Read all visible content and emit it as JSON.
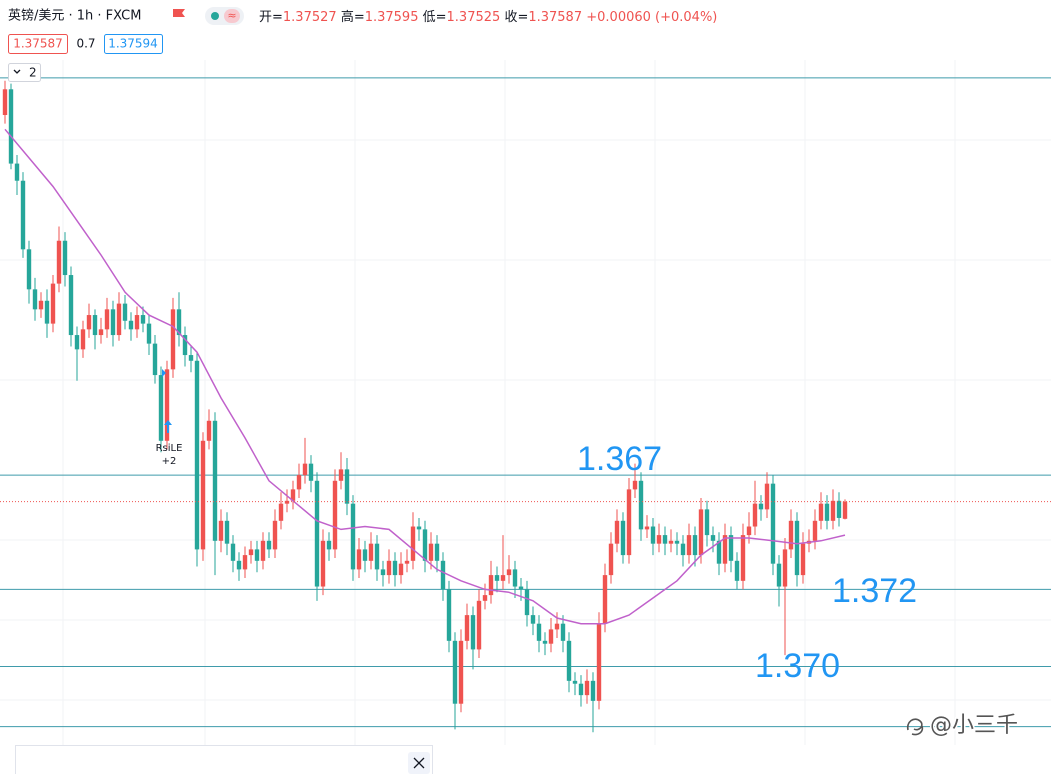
{
  "chart_data": {
    "type": "candlestick",
    "title": "英镑/美元 · 1h · FXCM",
    "ohlc_labels": [
      "开=",
      "高=",
      "低=",
      "收="
    ],
    "ohlc_values": [
      1.37527,
      1.37595,
      1.37525,
      1.37587
    ],
    "change": {
      "value": 0.0006,
      "label": "+0.00060"
    },
    "change_pct": {
      "value": 0.04,
      "label": "(+0.04%)"
    },
    "bid": 1.37587,
    "spread": 0.7,
    "ask": 1.37594,
    "indicator_count": 2,
    "up_color": "#ef5350",
    "down_color": "#26a69a",
    "ylim": [
      1.3676,
      1.3908
    ],
    "candles": [
      [
        1.3894,
        1.3906,
        1.3891,
        1.3903
      ],
      [
        1.3903,
        1.3905,
        1.3875,
        1.3877
      ],
      [
        1.3877,
        1.388,
        1.3866,
        1.3871
      ],
      [
        1.3871,
        1.3874,
        1.3844,
        1.3847
      ],
      [
        1.3847,
        1.385,
        1.3828,
        1.3833
      ],
      [
        1.3833,
        1.3837,
        1.3822,
        1.3826
      ],
      [
        1.3826,
        1.3832,
        1.3823,
        1.3829
      ],
      [
        1.3829,
        1.3833,
        1.3816,
        1.3821
      ],
      [
        1.3821,
        1.3838,
        1.3818,
        1.3835
      ],
      [
        1.3835,
        1.3855,
        1.3832,
        1.385
      ],
      [
        1.385,
        1.3853,
        1.3834,
        1.3838
      ],
      [
        1.3838,
        1.3841,
        1.3813,
        1.3817
      ],
      [
        1.3817,
        1.382,
        1.3801,
        1.3812
      ],
      [
        1.3812,
        1.3822,
        1.3809,
        1.3819
      ],
      [
        1.3819,
        1.3828,
        1.3816,
        1.3824
      ],
      [
        1.3824,
        1.3826,
        1.3812,
        1.3817
      ],
      [
        1.3817,
        1.3823,
        1.3814,
        1.3819
      ],
      [
        1.3819,
        1.383,
        1.3816,
        1.3826
      ],
      [
        1.3826,
        1.3829,
        1.3813,
        1.3817
      ],
      [
        1.3817,
        1.3832,
        1.3815,
        1.3828
      ],
      [
        1.3828,
        1.3831,
        1.3819,
        1.3822
      ],
      [
        1.3822,
        1.3825,
        1.3815,
        1.3819
      ],
      [
        1.3819,
        1.3827,
        1.3816,
        1.3824
      ],
      [
        1.3824,
        1.3827,
        1.3818,
        1.3821
      ],
      [
        1.3821,
        1.3824,
        1.381,
        1.3814
      ],
      [
        1.3814,
        1.3817,
        1.38,
        1.3803
      ],
      [
        1.3803,
        1.3806,
        1.3776,
        1.378
      ],
      [
        1.378,
        1.3808,
        1.3777,
        1.3805
      ],
      [
        1.3805,
        1.383,
        1.3802,
        1.3826
      ],
      [
        1.3826,
        1.3832,
        1.3813,
        1.3817
      ],
      [
        1.3817,
        1.382,
        1.3806,
        1.381
      ],
      [
        1.381,
        1.3813,
        1.3804,
        1.3808
      ],
      [
        1.3808,
        1.3811,
        1.3736,
        1.3742
      ],
      [
        1.3742,
        1.3783,
        1.3738,
        1.378
      ],
      [
        1.378,
        1.3791,
        1.3777,
        1.3787
      ],
      [
        1.3787,
        1.379,
        1.3733,
        1.3745
      ],
      [
        1.3745,
        1.3756,
        1.3741,
        1.3752
      ],
      [
        1.3752,
        1.3755,
        1.374,
        1.3744
      ],
      [
        1.3744,
        1.3747,
        1.3734,
        1.3738
      ],
      [
        1.3738,
        1.3741,
        1.3731,
        1.3735
      ],
      [
        1.3735,
        1.3743,
        1.3732,
        1.374
      ],
      [
        1.374,
        1.3745,
        1.3737,
        1.3742
      ],
      [
        1.3742,
        1.3745,
        1.3734,
        1.3738
      ],
      [
        1.3738,
        1.3748,
        1.3735,
        1.3745
      ],
      [
        1.3745,
        1.3748,
        1.3739,
        1.3742
      ],
      [
        1.3742,
        1.3756,
        1.3739,
        1.3752
      ],
      [
        1.3752,
        1.3762,
        1.3749,
        1.3758
      ],
      [
        1.3758,
        1.3763,
        1.3755,
        1.3759
      ],
      [
        1.3759,
        1.3766,
        1.3756,
        1.3763
      ],
      [
        1.3763,
        1.3772,
        1.376,
        1.3768
      ],
      [
        1.3768,
        1.3781,
        1.3765,
        1.3772
      ],
      [
        1.3772,
        1.3775,
        1.3762,
        1.3766
      ],
      [
        1.3766,
        1.3769,
        1.3724,
        1.3729
      ],
      [
        1.3729,
        1.3749,
        1.3726,
        1.3745
      ],
      [
        1.3745,
        1.3748,
        1.3738,
        1.3742
      ],
      [
        1.3742,
        1.377,
        1.3739,
        1.3766
      ],
      [
        1.3766,
        1.3776,
        1.3763,
        1.377
      ],
      [
        1.377,
        1.3774,
        1.3754,
        1.3758
      ],
      [
        1.3758,
        1.3761,
        1.3731,
        1.3735
      ],
      [
        1.3735,
        1.3746,
        1.3732,
        1.3742
      ],
      [
        1.3742,
        1.3745,
        1.3734,
        1.3738
      ],
      [
        1.3738,
        1.3748,
        1.3735,
        1.3744
      ],
      [
        1.3744,
        1.3747,
        1.3731,
        1.3735
      ],
      [
        1.3735,
        1.3738,
        1.3729,
        1.3733
      ],
      [
        1.3733,
        1.3742,
        1.373,
        1.3738
      ],
      [
        1.3738,
        1.3741,
        1.3729,
        1.3733
      ],
      [
        1.3733,
        1.3741,
        1.373,
        1.3737
      ],
      [
        1.3737,
        1.3742,
        1.3734,
        1.3738
      ],
      [
        1.3738,
        1.3755,
        1.3735,
        1.375
      ],
      [
        1.375,
        1.3753,
        1.3745,
        1.3749
      ],
      [
        1.3749,
        1.3752,
        1.3734,
        1.3738
      ],
      [
        1.3738,
        1.3748,
        1.3735,
        1.3744
      ],
      [
        1.3744,
        1.3747,
        1.3734,
        1.3738
      ],
      [
        1.3738,
        1.3741,
        1.3724,
        1.3728
      ],
      [
        1.3728,
        1.3731,
        1.3706,
        1.371
      ],
      [
        1.371,
        1.3713,
        1.3679,
        1.3688
      ],
      [
        1.3688,
        1.3714,
        1.3685,
        1.371
      ],
      [
        1.371,
        1.3723,
        1.3707,
        1.3719
      ],
      [
        1.3719,
        1.3722,
        1.37,
        1.3707
      ],
      [
        1.3707,
        1.3728,
        1.3704,
        1.3724
      ],
      [
        1.3724,
        1.373,
        1.3721,
        1.3726
      ],
      [
        1.3726,
        1.3738,
        1.3723,
        1.3733
      ],
      [
        1.3733,
        1.3736,
        1.3727,
        1.3731
      ],
      [
        1.3731,
        1.3747,
        1.3728,
        1.3733
      ],
      [
        1.3733,
        1.374,
        1.373,
        1.3735
      ],
      [
        1.3735,
        1.3738,
        1.3725,
        1.3729
      ],
      [
        1.3729,
        1.3732,
        1.3724,
        1.3728
      ],
      [
        1.3728,
        1.3731,
        1.3715,
        1.3719
      ],
      [
        1.3719,
        1.3722,
        1.3712,
        1.3716
      ],
      [
        1.3716,
        1.3719,
        1.3706,
        1.371
      ],
      [
        1.371,
        1.3713,
        1.3705,
        1.3709
      ],
      [
        1.3709,
        1.3718,
        1.3706,
        1.3714
      ],
      [
        1.3714,
        1.372,
        1.3711,
        1.3716
      ],
      [
        1.3716,
        1.3719,
        1.3706,
        1.371
      ],
      [
        1.371,
        1.3713,
        1.3692,
        1.3696
      ],
      [
        1.3696,
        1.3699,
        1.3691,
        1.3695
      ],
      [
        1.3695,
        1.3698,
        1.3687,
        1.3691
      ],
      [
        1.3691,
        1.37,
        1.3688,
        1.3696
      ],
      [
        1.3696,
        1.3699,
        1.3678,
        1.3689
      ],
      [
        1.3689,
        1.372,
        1.3686,
        1.3716
      ],
      [
        1.3716,
        1.3737,
        1.3713,
        1.3733
      ],
      [
        1.3733,
        1.3748,
        1.373,
        1.3744
      ],
      [
        1.3744,
        1.3756,
        1.3741,
        1.3752
      ],
      [
        1.3752,
        1.3755,
        1.3737,
        1.374
      ],
      [
        1.374,
        1.3767,
        1.3737,
        1.3763
      ],
      [
        1.3763,
        1.3772,
        1.376,
        1.3766
      ],
      [
        1.3766,
        1.3769,
        1.3745,
        1.3749
      ],
      [
        1.3749,
        1.3754,
        1.3746,
        1.375
      ],
      [
        1.375,
        1.3753,
        1.374,
        1.3744
      ],
      [
        1.3744,
        1.3751,
        1.3741,
        1.3747
      ],
      [
        1.3747,
        1.375,
        1.374,
        1.3744
      ],
      [
        1.3744,
        1.3749,
        1.3741,
        1.3745
      ],
      [
        1.3745,
        1.3748,
        1.374,
        1.3744
      ],
      [
        1.3744,
        1.3747,
        1.3736,
        1.374
      ],
      [
        1.374,
        1.3751,
        1.3737,
        1.3747
      ],
      [
        1.3747,
        1.375,
        1.3736,
        1.374
      ],
      [
        1.374,
        1.376,
        1.3737,
        1.3756
      ],
      [
        1.3756,
        1.3759,
        1.3743,
        1.3747
      ],
      [
        1.3747,
        1.375,
        1.3741,
        1.3745
      ],
      [
        1.3745,
        1.3748,
        1.3733,
        1.3737
      ],
      [
        1.3737,
        1.3751,
        1.3734,
        1.3747
      ],
      [
        1.3747,
        1.375,
        1.3734,
        1.3738
      ],
      [
        1.3738,
        1.3741,
        1.3728,
        1.3731
      ],
      [
        1.3731,
        1.3751,
        1.3728,
        1.3747
      ],
      [
        1.3747,
        1.3755,
        1.3744,
        1.375
      ],
      [
        1.375,
        1.3766,
        1.3747,
        1.3758
      ],
      [
        1.3758,
        1.3761,
        1.3752,
        1.3756
      ],
      [
        1.3756,
        1.3769,
        1.3753,
        1.3765
      ],
      [
        1.3765,
        1.3768,
        1.3733,
        1.3737
      ],
      [
        1.3737,
        1.374,
        1.3722,
        1.3729
      ],
      [
        1.3729,
        1.3746,
        1.3705,
        1.3742
      ],
      [
        1.3742,
        1.3756,
        1.3739,
        1.3752
      ],
      [
        1.3752,
        1.3755,
        1.3729,
        1.3733
      ],
      [
        1.3733,
        1.3748,
        1.373,
        1.3744
      ],
      [
        1.3744,
        1.3749,
        1.3741,
        1.3745
      ],
      [
        1.3745,
        1.3756,
        1.3742,
        1.3752
      ],
      [
        1.3752,
        1.3762,
        1.3749,
        1.3758
      ],
      [
        1.3758,
        1.3761,
        1.3749,
        1.3752
      ],
      [
        1.3752,
        1.3763,
        1.3749,
        1.3759
      ],
      [
        1.3759,
        1.3762,
        1.375,
        1.3753
      ],
      [
        1.37527,
        1.37595,
        1.37525,
        1.37587
      ]
    ],
    "ma": {
      "color": "#c061cb",
      "x": [
        0,
        4,
        8,
        12,
        16,
        20,
        24,
        28,
        32,
        36,
        40,
        44,
        48,
        52,
        56,
        60,
        64,
        68,
        72,
        76,
        80,
        84,
        88,
        92,
        96,
        100,
        104,
        108,
        112,
        116,
        120,
        124,
        128,
        132,
        136,
        140
      ],
      "values": [
        1.3889,
        1.3879,
        1.3869,
        1.3857,
        1.3845,
        1.3832,
        1.3824,
        1.382,
        1.3811,
        1.3795,
        1.3781,
        1.3766,
        1.3759,
        1.3752,
        1.3749,
        1.375,
        1.3749,
        1.3742,
        1.3735,
        1.3731,
        1.3728,
        1.3727,
        1.3724,
        1.3718,
        1.3716,
        1.3716,
        1.3719,
        1.3725,
        1.3731,
        1.374,
        1.3746,
        1.3746,
        1.3745,
        1.3744,
        1.3745,
        1.3747
      ]
    },
    "hlines": [
      1.3907,
      1.3768,
      1.3728,
      1.3701,
      1.368
    ],
    "hline_color": "#3f9bab",
    "annotations": [
      "1.367",
      "1.372",
      "1.370"
    ],
    "signal": {
      "label": "RsiLE",
      "qty": {
        "value": 2,
        "label": "+2"
      }
    },
    "watermark": "@小三千"
  }
}
